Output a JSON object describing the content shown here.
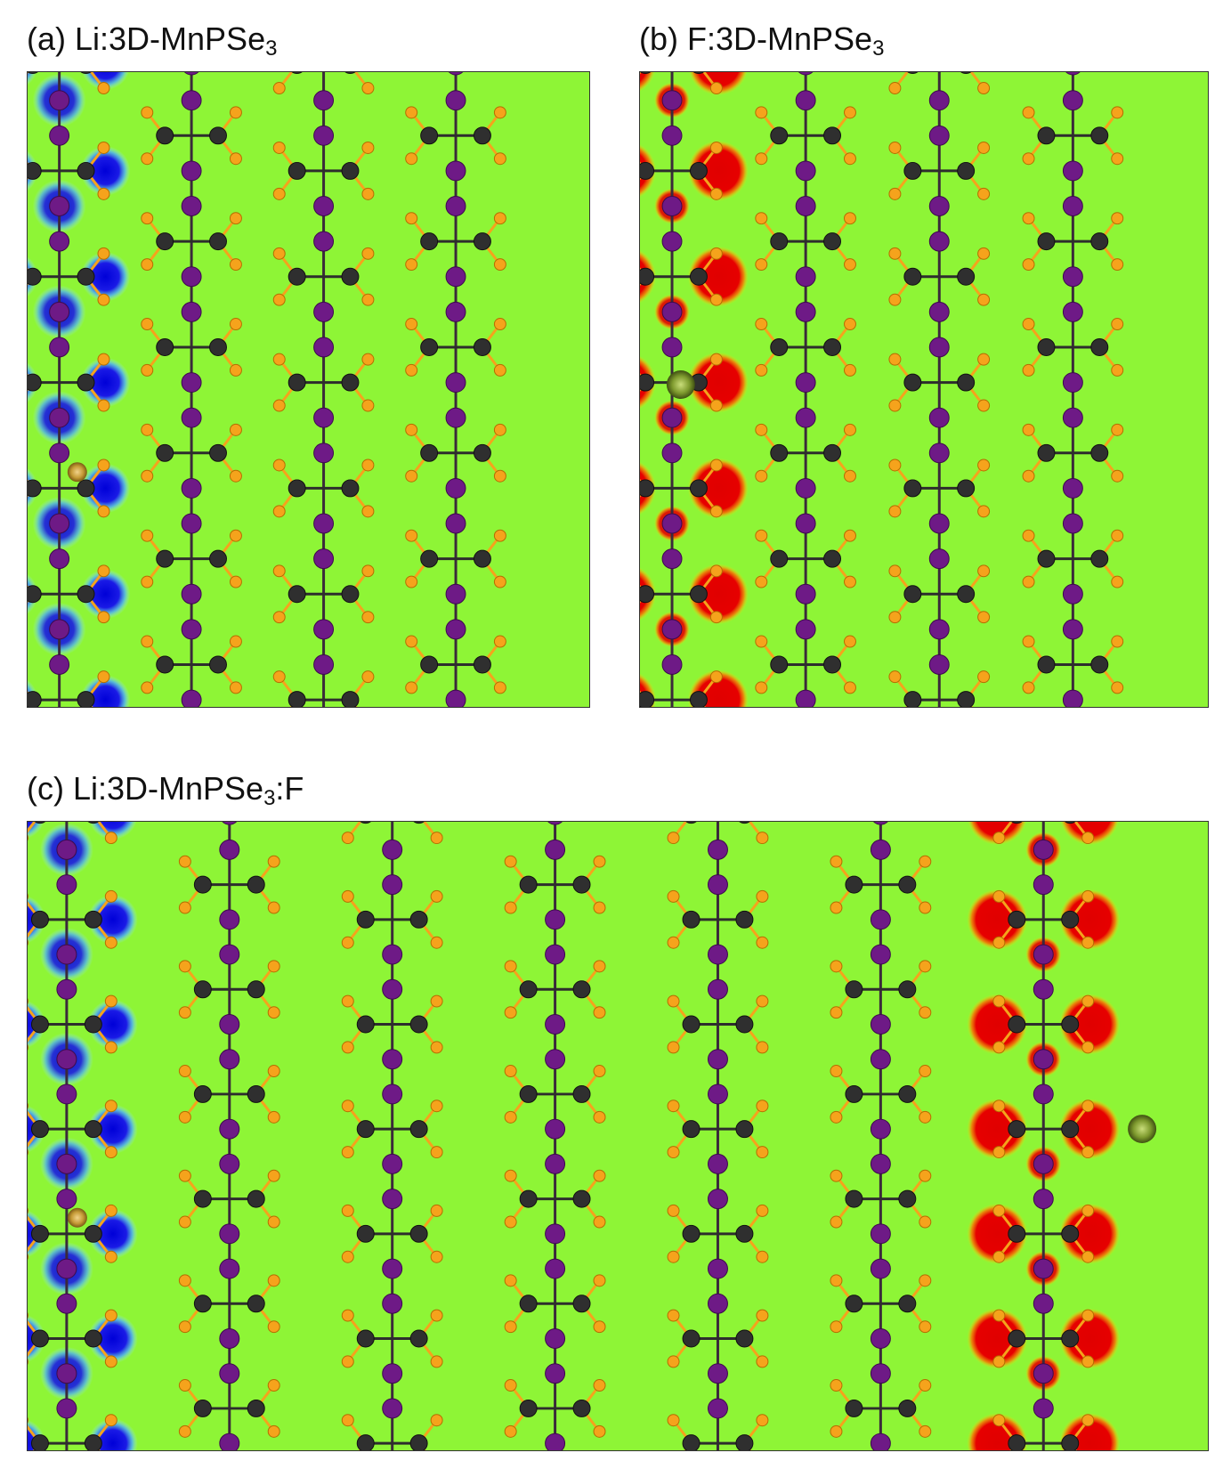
{
  "panels": [
    {
      "id": "a",
      "caption": {
        "prefix": "(a) Li:3D-MnPSe",
        "sub": "3",
        "suffix": ""
      },
      "background": "#8ef536",
      "chain_count": 4,
      "rows": 17,
      "charge": {
        "type": "electron",
        "chain_index": 0,
        "color": "#1a1ae6"
      },
      "dopant": {
        "element": "Li",
        "color": "#c59a36"
      }
    },
    {
      "id": "b",
      "caption": {
        "prefix": "(b) F:3D-MnPSe",
        "sub": "3",
        "suffix": ""
      },
      "background": "#8ef536",
      "chain_count": 4,
      "rows": 17,
      "charge": {
        "type": "hole",
        "chain_index": 0,
        "color": "#e60000"
      },
      "dopant": {
        "element": "F",
        "color": "#7e9a2e"
      }
    },
    {
      "id": "c",
      "caption": {
        "prefix": "(c) Li:3D-MnPSe",
        "sub": "3",
        "suffix": ":F"
      },
      "background": "#8ef536",
      "chain_count": 7,
      "rows": 17,
      "charges": [
        {
          "type": "electron",
          "chain_index": 0,
          "color": "#1a1ae6"
        },
        {
          "type": "hole",
          "chain_index": 6,
          "color": "#e60000"
        }
      ],
      "dopants": [
        {
          "element": "Li",
          "color": "#c59a36"
        },
        {
          "element": "F",
          "color": "#7e9a2e"
        }
      ]
    }
  ],
  "atom_colors": {
    "Mn": "#6e1a86",
    "P": "#2f2f2f",
    "Se": "#f5a31c",
    "bond": "#3a2a3a"
  }
}
